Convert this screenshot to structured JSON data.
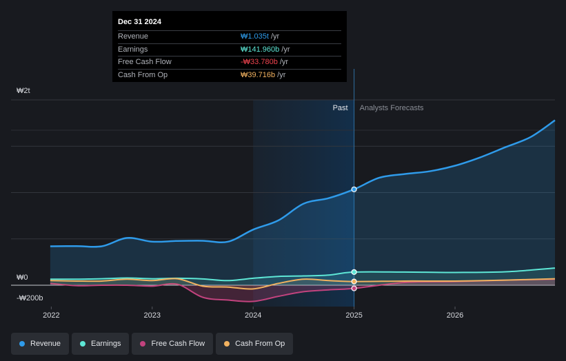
{
  "tooltip": {
    "date": "Dec 31 2024",
    "rows": [
      {
        "label": "Revenue",
        "value": "₩1.035t",
        "unit": "/yr",
        "color": "#2f9bea"
      },
      {
        "label": "Earnings",
        "value": "₩141.960b",
        "unit": "/yr",
        "color": "#5ee7d6"
      },
      {
        "label": "Free Cash Flow",
        "value": "-₩33.780b",
        "unit": "/yr",
        "color": "#f0444f"
      },
      {
        "label": "Cash From Op",
        "value": "₩39.716b",
        "unit": "/yr",
        "color": "#f2b260"
      }
    ]
  },
  "chart_data": {
    "type": "line",
    "y_tick_labels": [
      "₩2t",
      "₩0",
      "-₩200b"
    ],
    "y_tick_values": [
      2000,
      0,
      -200
    ],
    "ylim": [
      -200,
      2000
    ],
    "x_tick_labels": [
      "2022",
      "2023",
      "2024",
      "2025",
      "2026"
    ],
    "x_tick_values": [
      2022.0,
      2023.0,
      2024.0,
      2025.0,
      2026.0
    ],
    "xlim": [
      2021.82,
      2026.99
    ],
    "divider_x": 2025.0,
    "past_label": "Past",
    "forecast_label": "Analysts Forecasts",
    "shade_start": 2024.0,
    "series": [
      {
        "name": "Revenue",
        "color": "#2f9bea",
        "marker_x": 2025.0,
        "marker_y": 1035,
        "x": [
          2021.99,
          2022.25,
          2022.5,
          2022.75,
          2023.0,
          2023.25,
          2023.5,
          2023.75,
          2024.0,
          2024.25,
          2024.5,
          2024.75,
          2025.0,
          2025.25,
          2025.5,
          2025.75,
          2026.0,
          2026.25,
          2026.5,
          2026.75,
          2026.99
        ],
        "y": [
          420,
          422,
          420,
          510,
          470,
          478,
          480,
          470,
          600,
          700,
          880,
          940,
          1035,
          1160,
          1200,
          1230,
          1290,
          1380,
          1490,
          1600,
          1780
        ]
      },
      {
        "name": "Earnings",
        "color": "#5ee7d6",
        "marker_x": 2025.0,
        "marker_y": 142,
        "x": [
          2021.99,
          2022.25,
          2022.5,
          2022.75,
          2023.0,
          2023.25,
          2023.5,
          2023.75,
          2024.0,
          2024.25,
          2024.5,
          2024.75,
          2025.0,
          2025.5,
          2026.0,
          2026.5,
          2026.99
        ],
        "y": [
          65,
          65,
          70,
          78,
          70,
          75,
          68,
          50,
          75,
          95,
          100,
          110,
          142,
          142,
          138,
          145,
          185
        ]
      },
      {
        "name": "Free Cash Flow",
        "color": "#c2437e",
        "marker_x": 2025.0,
        "marker_y": -34,
        "x": [
          2021.99,
          2022.25,
          2022.5,
          2022.75,
          2023.0,
          2023.25,
          2023.5,
          2023.75,
          2024.0,
          2024.25,
          2024.5,
          2024.75,
          2025.0,
          2025.5,
          2026.0,
          2026.5,
          2026.99
        ],
        "y": [
          20,
          -5,
          0,
          0,
          -10,
          10,
          -130,
          -160,
          -175,
          -120,
          -70,
          -50,
          -34,
          30,
          40,
          55,
          65
        ]
      },
      {
        "name": "Cash From Op",
        "color": "#f2b260",
        "marker_x": 2025.0,
        "marker_y": 40,
        "x": [
          2021.99,
          2022.25,
          2022.5,
          2022.75,
          2023.0,
          2023.25,
          2023.5,
          2023.75,
          2024.0,
          2024.25,
          2024.5,
          2024.75,
          2025.0,
          2025.5,
          2026.0,
          2026.5,
          2026.99
        ],
        "y": [
          50,
          45,
          45,
          65,
          50,
          70,
          -10,
          -20,
          -40,
          20,
          65,
          50,
          40,
          45,
          45,
          55,
          70
        ]
      }
    ]
  }
}
